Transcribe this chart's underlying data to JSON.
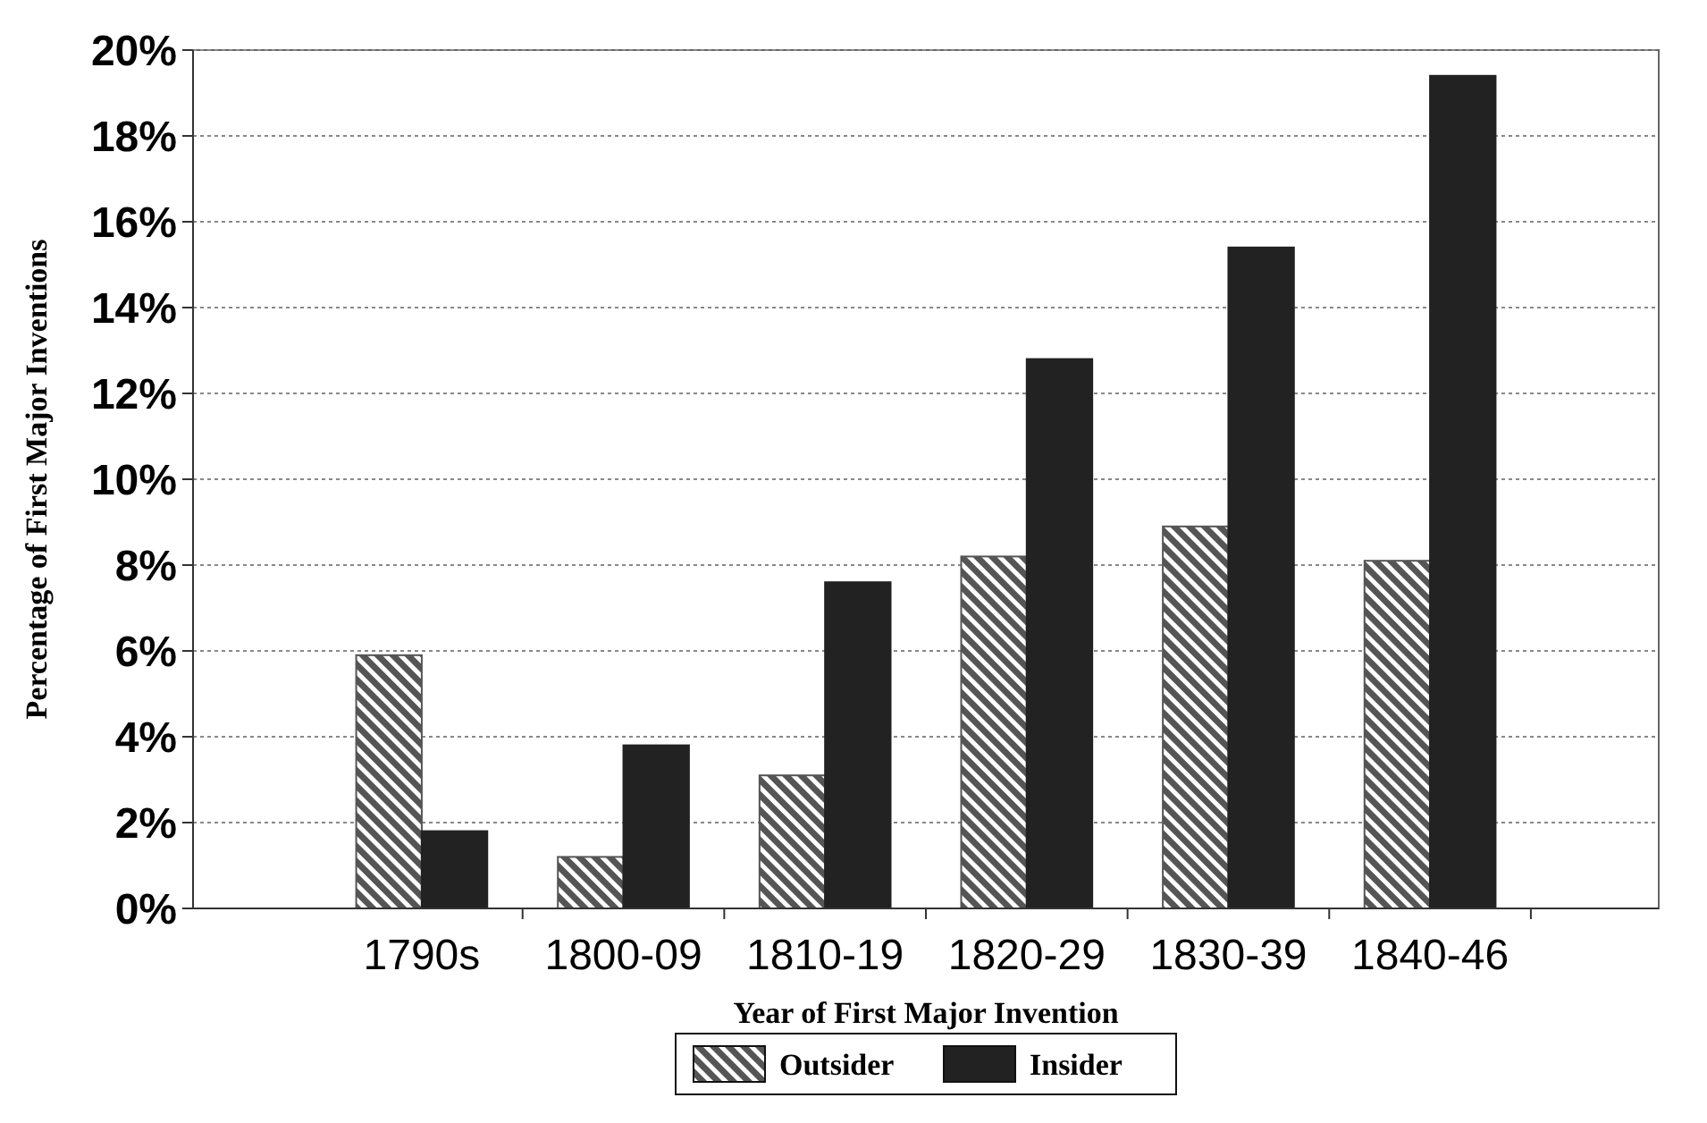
{
  "chart_data": {
    "type": "bar",
    "xlabel": "Year of First Major Invention",
    "ylabel": "Percentage of First Major Inventions",
    "categories": [
      "1790s",
      "1800-09",
      "1810-19",
      "1820-29",
      "1830-39",
      "1840-46"
    ],
    "series": [
      {
        "name": "Outsider",
        "color": "#555555",
        "values": [
          5.9,
          1.2,
          3.1,
          8.2,
          8.9,
          8.1
        ]
      },
      {
        "name": "Insider",
        "color": "#222222",
        "values": [
          1.8,
          3.8,
          7.6,
          12.8,
          15.4,
          19.4
        ]
      }
    ],
    "ylim": [
      0,
      20
    ],
    "yticks": [
      {
        "value": 0,
        "label": "0%"
      },
      {
        "value": 2,
        "label": "2%"
      },
      {
        "value": 4,
        "label": "4%"
      },
      {
        "value": 6,
        "label": "6%"
      },
      {
        "value": 8,
        "label": "8%"
      },
      {
        "value": 10,
        "label": "10%"
      },
      {
        "value": 12,
        "label": "12%"
      },
      {
        "value": 14,
        "label": "14%"
      },
      {
        "value": 16,
        "label": "16%"
      },
      {
        "value": 18,
        "label": "18%"
      },
      {
        "value": 20,
        "label": "20%"
      }
    ],
    "grid": "y",
    "legend": "bottom"
  }
}
